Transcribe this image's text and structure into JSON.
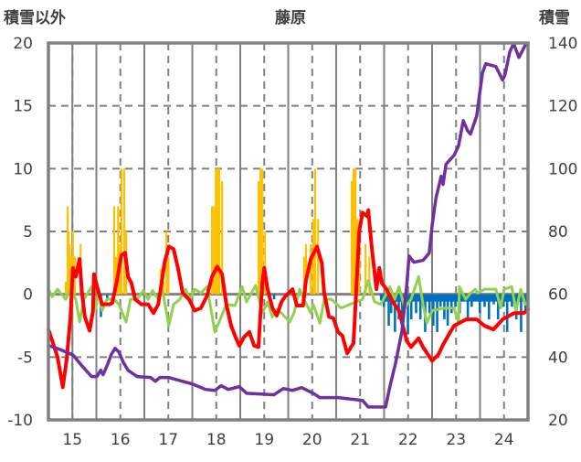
{
  "chart_data": {
    "type": "bar+line",
    "title": "藤原",
    "ylabel_left": "積雪以外",
    "ylabel_right": "積雪",
    "xlim": [
      14.5,
      24.5
    ],
    "ylim_left": [
      -10,
      20
    ],
    "ylim_right": [
      20,
      140
    ],
    "x_ticks": [
      "15",
      "16",
      "17",
      "18",
      "19",
      "20",
      "21",
      "22",
      "23",
      "24"
    ],
    "y_ticks_left": [
      "-10",
      "-5",
      "0",
      "5",
      "10",
      "15",
      "20"
    ],
    "y_ticks_right": [
      "20",
      "40",
      "60",
      "80",
      "100",
      "120",
      "140"
    ],
    "grid": true,
    "colors": {
      "orange_bars": "#FFC000",
      "blue_bars": "#0070C0",
      "red": "#FF0000",
      "green": "#92D050",
      "purple": "#7030A0",
      "frame": "#808080"
    },
    "orange_bars": [
      [
        14.86,
        1
      ],
      [
        14.9,
        7
      ],
      [
        14.92,
        5
      ],
      [
        14.94,
        4
      ],
      [
        14.98,
        3
      ],
      [
        15.01,
        5
      ],
      [
        15.05,
        3
      ],
      [
        15.17,
        4
      ],
      [
        15.87,
        7
      ],
      [
        15.91,
        3
      ],
      [
        15.95,
        7
      ],
      [
        15.99,
        4
      ],
      [
        16.02,
        10
      ],
      [
        16.08,
        10
      ],
      [
        16.12,
        5
      ],
      [
        16.84,
        2
      ],
      [
        16.9,
        1
      ],
      [
        16.96,
        5
      ],
      [
        17.0,
        3
      ],
      [
        17.91,
        7
      ],
      [
        17.95,
        7
      ],
      [
        17.99,
        10
      ],
      [
        18.02,
        10
      ],
      [
        18.06,
        10
      ],
      [
        18.12,
        9
      ],
      [
        18.88,
        9
      ],
      [
        18.92,
        10
      ],
      [
        18.96,
        10
      ],
      [
        19.01,
        5
      ],
      [
        19.83,
        3
      ],
      [
        19.87,
        4
      ],
      [
        19.97,
        4
      ],
      [
        20.02,
        6
      ],
      [
        20.06,
        10
      ],
      [
        20.12,
        6
      ],
      [
        20.82,
        9
      ],
      [
        20.86,
        10
      ],
      [
        20.9,
        10
      ],
      [
        20.94,
        6
      ],
      [
        20.98,
        5
      ],
      [
        21.11,
        4
      ],
      [
        21.19,
        3
      ]
    ],
    "blue_bars": [
      [
        15.59,
        -1.8
      ],
      [
        15.72,
        -0.3
      ],
      [
        19.2,
        -0.4
      ],
      [
        21.43,
        -0.5
      ],
      [
        21.49,
        -1
      ],
      [
        21.59,
        -2.5
      ],
      [
        21.64,
        -1.5
      ],
      [
        21.72,
        -3
      ],
      [
        21.8,
        -2
      ],
      [
        21.87,
        -2.5
      ],
      [
        21.93,
        -1
      ],
      [
        21.99,
        -3.2
      ],
      [
        22.06,
        -2
      ],
      [
        22.16,
        -1.5
      ],
      [
        22.25,
        -2
      ],
      [
        22.35,
        -3
      ],
      [
        22.44,
        -1.5
      ],
      [
        22.52,
        -2.5
      ],
      [
        22.6,
        -3
      ],
      [
        22.67,
        -1
      ],
      [
        22.75,
        -2
      ],
      [
        22.82,
        -2.5
      ],
      [
        22.9,
        -1.5
      ],
      [
        22.98,
        -1
      ],
      [
        23.07,
        -1.5
      ],
      [
        23.17,
        -0.5
      ],
      [
        23.24,
        -2
      ],
      [
        23.32,
        -1
      ],
      [
        23.4,
        -0.5
      ],
      [
        23.49,
        -1.5
      ],
      [
        23.59,
        -1
      ],
      [
        23.68,
        -2
      ],
      [
        23.78,
        -0.8
      ],
      [
        23.87,
        -2
      ],
      [
        23.97,
        -1
      ],
      [
        24.06,
        -3
      ],
      [
        24.16,
        -1
      ],
      [
        24.25,
        -2
      ],
      [
        24.35,
        -3
      ],
      [
        24.44,
        -1.5
      ]
    ],
    "red_line": [
      [
        14.5,
        -2.8
      ],
      [
        14.58,
        -3.7
      ],
      [
        14.69,
        -5
      ],
      [
        14.8,
        -7.4
      ],
      [
        14.88,
        -5.2
      ],
      [
        14.96,
        -1.8
      ],
      [
        15.01,
        2.1
      ],
      [
        15.07,
        1.4
      ],
      [
        15.15,
        2.8
      ],
      [
        15.2,
        0.1
      ],
      [
        15.26,
        -1.8
      ],
      [
        15.36,
        -2.9
      ],
      [
        15.43,
        -1.3
      ],
      [
        15.45,
        1.6
      ],
      [
        15.55,
        0.1
      ],
      [
        15.62,
        -0.8
      ],
      [
        15.78,
        -0.8
      ],
      [
        15.83,
        -0.7
      ],
      [
        15.93,
        1.1
      ],
      [
        16.02,
        3.1
      ],
      [
        16.1,
        3.3
      ],
      [
        16.16,
        1.4
      ],
      [
        16.23,
        0.9
      ],
      [
        16.31,
        -0.4
      ],
      [
        16.44,
        -0.8
      ],
      [
        16.58,
        -0.8
      ],
      [
        16.69,
        -1.5
      ],
      [
        16.79,
        -0.8
      ],
      [
        16.86,
        0.9
      ],
      [
        16.92,
        2.5
      ],
      [
        17.01,
        3.8
      ],
      [
        17.11,
        3.6
      ],
      [
        17.2,
        2.1
      ],
      [
        17.3,
        0.1
      ],
      [
        17.43,
        -0.4
      ],
      [
        17.55,
        -1.3
      ],
      [
        17.68,
        -1.1
      ],
      [
        17.81,
        -0.1
      ],
      [
        17.91,
        1.4
      ],
      [
        18.02,
        2.2
      ],
      [
        18.12,
        1.6
      ],
      [
        18.21,
        -0.8
      ],
      [
        18.31,
        -2.5
      ],
      [
        18.4,
        -3.4
      ],
      [
        18.48,
        -4.1
      ],
      [
        18.58,
        -3.4
      ],
      [
        18.69,
        -3
      ],
      [
        18.79,
        -4.1
      ],
      [
        18.88,
        -4.2
      ],
      [
        18.96,
        0.9
      ],
      [
        19.0,
        2.1
      ],
      [
        19.07,
        0.4
      ],
      [
        19.17,
        -1.1
      ],
      [
        19.26,
        -1.7
      ],
      [
        19.36,
        -0.6
      ],
      [
        19.45,
        -0.1
      ],
      [
        19.59,
        0.4
      ],
      [
        19.68,
        -0.9
      ],
      [
        19.81,
        -0.9
      ],
      [
        19.87,
        1.1
      ],
      [
        19.97,
        2.8
      ],
      [
        20.1,
        3.8
      ],
      [
        20.2,
        2.5
      ],
      [
        20.25,
        0.1
      ],
      [
        20.35,
        -1.8
      ],
      [
        20.44,
        -1.9
      ],
      [
        20.54,
        -3
      ],
      [
        20.63,
        -3.3
      ],
      [
        20.73,
        -4.7
      ],
      [
        20.86,
        -3.9
      ],
      [
        20.9,
        -1.1
      ],
      [
        20.98,
        5
      ],
      [
        21.05,
        6.5
      ],
      [
        21.15,
        6.2
      ],
      [
        21.17,
        6.7
      ],
      [
        21.24,
        3.8
      ],
      [
        21.34,
        0.4
      ],
      [
        21.4,
        2.1
      ],
      [
        21.45,
        0.9
      ],
      [
        21.55,
        0.4
      ],
      [
        21.68,
        -0.6
      ],
      [
        21.81,
        -1.3
      ],
      [
        21.97,
        -3.7
      ],
      [
        22.06,
        -4.2
      ],
      [
        22.22,
        -3.5
      ],
      [
        22.31,
        -4.2
      ],
      [
        22.5,
        -5.3
      ],
      [
        22.63,
        -4.8
      ],
      [
        22.73,
        -4
      ],
      [
        22.88,
        -3
      ],
      [
        22.96,
        -2.5
      ],
      [
        23.21,
        -2
      ],
      [
        23.43,
        -2
      ],
      [
        23.59,
        -2.5
      ],
      [
        23.78,
        -2.8
      ],
      [
        23.97,
        -2
      ],
      [
        24.21,
        -1.5
      ],
      [
        24.41,
        -1.5
      ],
      [
        24.5,
        -1.2
      ]
    ],
    "green_line": [
      [
        14.5,
        0.4
      ],
      [
        14.58,
        -0.2
      ],
      [
        14.69,
        0.4
      ],
      [
        14.86,
        -0.4
      ],
      [
        14.96,
        0.4
      ],
      [
        15.07,
        -0.4
      ],
      [
        15.15,
        -2.2
      ],
      [
        15.24,
        -0.4
      ],
      [
        15.4,
        0.6
      ],
      [
        15.49,
        -1.1
      ],
      [
        15.55,
        0.4
      ],
      [
        15.62,
        -1.3
      ],
      [
        15.72,
        -0.4
      ],
      [
        15.87,
        -0.4
      ],
      [
        15.97,
        -0.8
      ],
      [
        16.12,
        -2.2
      ],
      [
        16.21,
        -0.4
      ],
      [
        16.35,
        -0.4
      ],
      [
        16.48,
        0.3
      ],
      [
        16.58,
        -0.4
      ],
      [
        16.67,
        0.3
      ],
      [
        16.79,
        -0.4
      ],
      [
        16.88,
        0.3
      ],
      [
        17.01,
        -2.5
      ],
      [
        17.11,
        -0.8
      ],
      [
        17.24,
        -0.4
      ],
      [
        17.36,
        0.4
      ],
      [
        17.45,
        -0.4
      ],
      [
        17.55,
        0.4
      ],
      [
        17.68,
        0.1
      ],
      [
        17.81,
        0.6
      ],
      [
        17.97,
        -3
      ],
      [
        18.06,
        -2.2
      ],
      [
        18.21,
        -0.8
      ],
      [
        18.39,
        -0.9
      ],
      [
        18.54,
        0.6
      ],
      [
        18.63,
        -0.6
      ],
      [
        18.82,
        0.7
      ],
      [
        18.96,
        -1.5
      ],
      [
        19.07,
        -0.6
      ],
      [
        19.17,
        -1.8
      ],
      [
        19.26,
        -1.2
      ],
      [
        19.36,
        -1.5
      ],
      [
        19.53,
        -2.2
      ],
      [
        19.62,
        -1.5
      ],
      [
        19.74,
        0.4
      ],
      [
        19.83,
        -0.4
      ],
      [
        19.97,
        -1.5
      ],
      [
        20.02,
        -0.8
      ],
      [
        20.16,
        -2.3
      ],
      [
        20.25,
        -0.4
      ],
      [
        20.4,
        -0.4
      ],
      [
        20.6,
        -1.1
      ],
      [
        20.79,
        -0.8
      ],
      [
        21.05,
        -0.4
      ],
      [
        21.17,
        1.1
      ],
      [
        21.3,
        -0.6
      ],
      [
        21.43,
        -0.8
      ],
      [
        21.62,
        0.6
      ],
      [
        21.72,
        -0.4
      ],
      [
        21.81,
        0.6
      ],
      [
        21.93,
        -1.1
      ],
      [
        22.06,
        -0.4
      ],
      [
        22.22,
        1.4
      ],
      [
        22.31,
        -0.8
      ],
      [
        22.39,
        -2.3
      ],
      [
        22.5,
        -1.3
      ],
      [
        22.77,
        -1.1
      ],
      [
        22.96,
        -1.1
      ],
      [
        23.05,
        -2.3
      ],
      [
        23.07,
        0.6
      ],
      [
        23.2,
        -0.4
      ],
      [
        23.3,
        0.1
      ],
      [
        23.4,
        0.4
      ],
      [
        23.45,
        0.1
      ],
      [
        23.59,
        0.4
      ],
      [
        23.83,
        0.4
      ],
      [
        23.93,
        -1.1
      ],
      [
        24.0,
        0.4
      ],
      [
        24.16,
        0.6
      ],
      [
        24.25,
        -1.3
      ],
      [
        24.35,
        0.4
      ],
      [
        24.44,
        -0.8
      ],
      [
        24.5,
        -0.7
      ]
    ],
    "purple_line_snow_depth": [
      [
        14.5,
        43.7
      ],
      [
        14.73,
        42.5
      ],
      [
        15.01,
        40.7
      ],
      [
        15.2,
        37.2
      ],
      [
        15.4,
        33.8
      ],
      [
        15.51,
        33.8
      ],
      [
        15.59,
        35.8
      ],
      [
        15.64,
        34.4
      ],
      [
        15.74,
        37.9
      ],
      [
        15.81,
        40.8
      ],
      [
        15.89,
        42.8
      ],
      [
        15.97,
        41.6
      ],
      [
        16.06,
        38.4
      ],
      [
        16.16,
        35.8
      ],
      [
        16.35,
        33.8
      ],
      [
        16.63,
        33.5
      ],
      [
        16.73,
        32.3
      ],
      [
        16.82,
        33.5
      ],
      [
        17.01,
        33.5
      ],
      [
        17.49,
        31.5
      ],
      [
        17.78,
        29.7
      ],
      [
        17.97,
        29.4
      ],
      [
        18.1,
        30.9
      ],
      [
        18.25,
        29.7
      ],
      [
        18.48,
        30.6
      ],
      [
        18.63,
        28.5
      ],
      [
        19.2,
        28
      ],
      [
        19.4,
        30
      ],
      [
        19.59,
        29.4
      ],
      [
        19.78,
        30.3
      ],
      [
        20.02,
        28.5
      ],
      [
        20.16,
        27.1
      ],
      [
        20.54,
        27.1
      ],
      [
        21.05,
        26.2
      ],
      [
        21.17,
        24.1
      ],
      [
        21.53,
        24.1
      ],
      [
        21.62,
        30.6
      ],
      [
        21.74,
        38.2
      ],
      [
        21.87,
        48.1
      ],
      [
        21.97,
        62.6
      ],
      [
        22.02,
        72.2
      ],
      [
        22.12,
        70.2
      ],
      [
        22.31,
        70.8
      ],
      [
        22.44,
        73.1
      ],
      [
        22.5,
        81.8
      ],
      [
        22.58,
        90.6
      ],
      [
        22.69,
        97.6
      ],
      [
        22.73,
        95
      ],
      [
        22.79,
        101.4
      ],
      [
        22.96,
        104.3
      ],
      [
        23.05,
        107.2
      ],
      [
        23.15,
        115.3
      ],
      [
        23.24,
        112.1
      ],
      [
        23.3,
        111
      ],
      [
        23.43,
        116.8
      ],
      [
        23.55,
        130.5
      ],
      [
        23.62,
        133.4
      ],
      [
        23.83,
        132.5
      ],
      [
        23.97,
        128.2
      ],
      [
        24.02,
        129.9
      ],
      [
        24.12,
        137.2
      ],
      [
        24.2,
        139.8
      ],
      [
        24.31,
        135.4
      ],
      [
        24.44,
        139.2
      ],
      [
        24.5,
        139.8
      ]
    ]
  }
}
